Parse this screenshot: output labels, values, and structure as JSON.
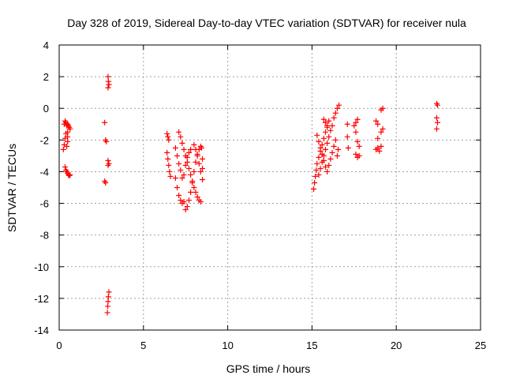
{
  "chart_data": {
    "type": "scatter",
    "title": "Day 328 of 2019, Sidereal Day-to-day VTEC variation (SDTVAR) for receiver nula",
    "xlabel": "GPS time / hours",
    "ylabel": "SDTVAR / TECUs",
    "xlim": [
      0,
      25
    ],
    "ylim": [
      -14,
      4
    ],
    "xticks": [
      0,
      5,
      10,
      15,
      20,
      25
    ],
    "yticks": [
      -14,
      -12,
      -10,
      -8,
      -6,
      -4,
      -2,
      0,
      2,
      4
    ],
    "grid": true,
    "marker": "+",
    "colors": {
      "series": "#ff0000",
      "grid": "#a0a0a0",
      "axis": "#000000"
    },
    "series": [
      {
        "name": "SDTVAR",
        "points": [
          [
            0.25,
            -2.6
          ],
          [
            0.3,
            -2.3
          ],
          [
            0.3,
            -1.0
          ],
          [
            0.35,
            -0.8
          ],
          [
            0.35,
            -1.9
          ],
          [
            0.4,
            -0.9
          ],
          [
            0.4,
            -1.6
          ],
          [
            0.45,
            -1.1
          ],
          [
            0.5,
            -1.0
          ],
          [
            0.55,
            -1.1
          ],
          [
            0.6,
            -1.2
          ],
          [
            0.65,
            -1.3
          ],
          [
            0.5,
            -1.5
          ],
          [
            0.5,
            -1.8
          ],
          [
            0.5,
            -2.1
          ],
          [
            0.45,
            -2.4
          ],
          [
            0.35,
            -3.7
          ],
          [
            0.4,
            -3.9
          ],
          [
            0.45,
            -4.0
          ],
          [
            0.5,
            -4.1
          ],
          [
            0.55,
            -4.2
          ],
          [
            0.6,
            -4.25
          ],
          [
            0.65,
            -4.2
          ],
          [
            2.7,
            -0.9
          ],
          [
            2.75,
            -2.0
          ],
          [
            2.8,
            -2.1
          ],
          [
            2.7,
            -4.6
          ],
          [
            2.75,
            -4.7
          ],
          [
            2.9,
            2.0
          ],
          [
            2.92,
            1.7
          ],
          [
            2.95,
            1.5
          ],
          [
            2.9,
            1.3
          ],
          [
            2.9,
            -3.3
          ],
          [
            2.95,
            -3.5
          ],
          [
            2.9,
            -3.6
          ],
          [
            2.95,
            -11.6
          ],
          [
            2.92,
            -11.9
          ],
          [
            2.9,
            -12.2
          ],
          [
            2.88,
            -12.5
          ],
          [
            2.86,
            -12.9
          ],
          [
            6.4,
            -1.6
          ],
          [
            6.45,
            -1.8
          ],
          [
            6.5,
            -2.0
          ],
          [
            6.4,
            -2.8
          ],
          [
            6.45,
            -3.2
          ],
          [
            6.5,
            -3.6
          ],
          [
            6.55,
            -4.0
          ],
          [
            6.6,
            -4.3
          ],
          [
            6.9,
            -4.4
          ],
          [
            7.0,
            -5.0
          ],
          [
            7.1,
            -5.5
          ],
          [
            7.2,
            -5.8
          ],
          [
            7.3,
            -6.0
          ],
          [
            7.4,
            -5.9
          ],
          [
            7.1,
            -1.5
          ],
          [
            7.2,
            -1.8
          ],
          [
            7.3,
            -2.2
          ],
          [
            7.4,
            -2.6
          ],
          [
            7.5,
            -3.0
          ],
          [
            7.6,
            -3.4
          ],
          [
            7.7,
            -3.8
          ],
          [
            7.8,
            -4.2
          ],
          [
            7.9,
            -4.6
          ],
          [
            8.0,
            -5.0
          ],
          [
            8.1,
            -5.3
          ],
          [
            8.2,
            -5.6
          ],
          [
            8.3,
            -5.8
          ],
          [
            8.4,
            -5.9
          ],
          [
            7.5,
            -6.4
          ],
          [
            7.6,
            -6.2
          ],
          [
            7.7,
            -5.8
          ],
          [
            7.8,
            -5.3
          ],
          [
            7.9,
            -4.7
          ],
          [
            8.0,
            -4.0
          ],
          [
            8.1,
            -3.4
          ],
          [
            8.2,
            -2.9
          ],
          [
            8.3,
            -2.6
          ],
          [
            8.4,
            -2.4
          ],
          [
            7.4,
            -4.2
          ],
          [
            7.5,
            -3.6
          ],
          [
            7.6,
            -3.1
          ],
          [
            7.7,
            -2.8
          ],
          [
            7.8,
            -2.6
          ],
          [
            6.9,
            -2.5
          ],
          [
            7.0,
            -3.0
          ],
          [
            7.1,
            -3.5
          ],
          [
            7.2,
            -3.9
          ],
          [
            7.3,
            -4.4
          ],
          [
            8.0,
            -2.3
          ],
          [
            8.1,
            -2.6
          ],
          [
            8.2,
            -3.0
          ],
          [
            8.3,
            -3.5
          ],
          [
            8.4,
            -4.0
          ],
          [
            8.5,
            -4.5
          ],
          [
            8.45,
            -2.5
          ],
          [
            8.5,
            -3.2
          ],
          [
            8.5,
            -3.8
          ],
          [
            15.1,
            -5.1
          ],
          [
            15.15,
            -4.7
          ],
          [
            15.2,
            -4.3
          ],
          [
            15.25,
            -3.9
          ],
          [
            15.3,
            -3.5
          ],
          [
            15.4,
            -3.1
          ],
          [
            15.5,
            -2.7
          ],
          [
            15.6,
            -2.3
          ],
          [
            15.7,
            -1.9
          ],
          [
            15.8,
            -1.5
          ],
          [
            15.9,
            -1.1
          ],
          [
            16.0,
            -0.8
          ],
          [
            15.3,
            -1.7
          ],
          [
            15.4,
            -2.1
          ],
          [
            15.5,
            -2.5
          ],
          [
            15.6,
            -2.9
          ],
          [
            15.7,
            -3.3
          ],
          [
            15.8,
            -3.7
          ],
          [
            15.9,
            -4.0
          ],
          [
            16.0,
            -3.6
          ],
          [
            16.1,
            -3.2
          ],
          [
            16.2,
            -2.8
          ],
          [
            16.3,
            -2.4
          ],
          [
            16.4,
            -2.0
          ],
          [
            15.4,
            -4.2
          ],
          [
            15.5,
            -3.8
          ],
          [
            15.6,
            -3.4
          ],
          [
            15.7,
            -3.0
          ],
          [
            15.8,
            -2.6
          ],
          [
            15.9,
            -2.2
          ],
          [
            16.0,
            -1.8
          ],
          [
            16.1,
            -1.4
          ],
          [
            16.2,
            -1.1
          ],
          [
            16.3,
            -0.6
          ],
          [
            16.4,
            -0.3
          ],
          [
            16.5,
            0.0
          ],
          [
            16.6,
            0.2
          ],
          [
            15.7,
            -0.7
          ],
          [
            15.8,
            -0.9
          ],
          [
            15.9,
            -1.2
          ],
          [
            16.5,
            -3.0
          ],
          [
            16.55,
            -2.6
          ],
          [
            17.1,
            -1.0
          ],
          [
            17.1,
            -1.8
          ],
          [
            17.15,
            -2.5
          ],
          [
            17.5,
            -1.1
          ],
          [
            17.6,
            -0.9
          ],
          [
            17.7,
            -0.7
          ],
          [
            17.6,
            -1.5
          ],
          [
            17.7,
            -2.1
          ],
          [
            17.8,
            -2.4
          ],
          [
            17.6,
            -2.9
          ],
          [
            17.7,
            -3.1
          ],
          [
            17.8,
            -3.0
          ],
          [
            18.8,
            -0.8
          ],
          [
            18.9,
            -1.0
          ],
          [
            18.9,
            -1.9
          ],
          [
            18.8,
            -2.6
          ],
          [
            18.9,
            -2.5
          ],
          [
            19.0,
            -2.7
          ],
          [
            19.1,
            -2.4
          ],
          [
            19.1,
            -0.1
          ],
          [
            19.2,
            0.0
          ],
          [
            19.2,
            -1.3
          ],
          [
            19.1,
            -1.5
          ],
          [
            22.4,
            0.3
          ],
          [
            22.45,
            0.2
          ],
          [
            22.4,
            -0.6
          ],
          [
            22.45,
            -0.9
          ],
          [
            22.4,
            -1.3
          ]
        ]
      }
    ]
  }
}
